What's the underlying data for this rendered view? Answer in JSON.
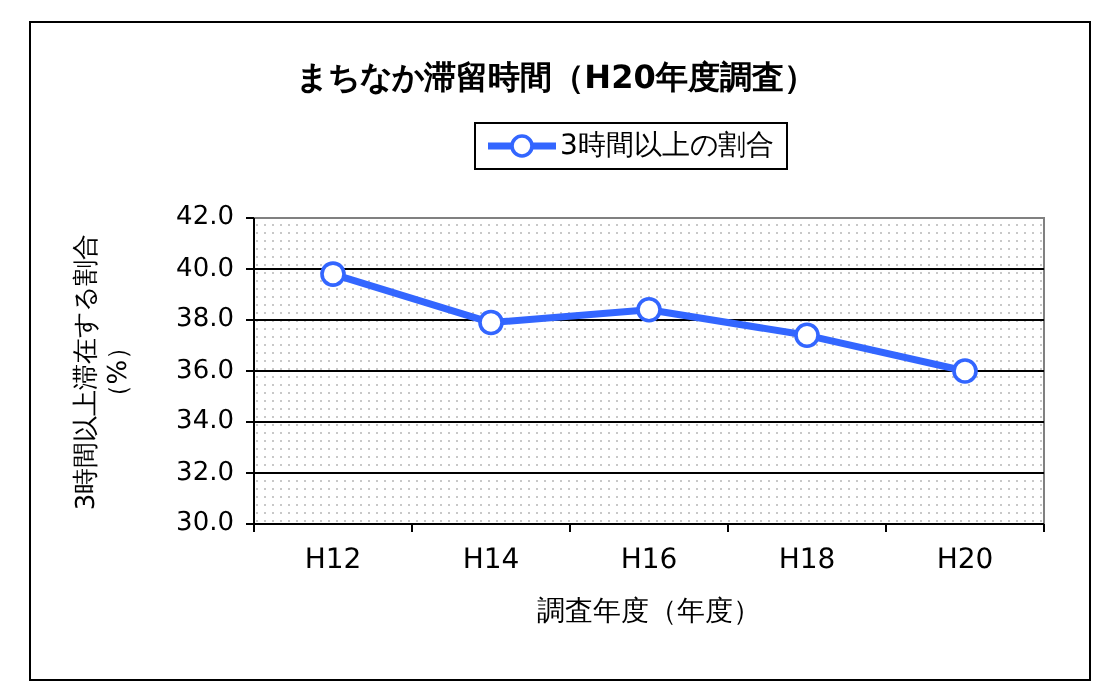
{
  "chart_data": {
    "type": "line",
    "title": "まちなか滞留時間（H20年度調査）",
    "xlabel": "調査年度（年度）",
    "ylabel": "3時間以上滞在する割合（%）",
    "categories": [
      "H12",
      "H14",
      "H16",
      "H18",
      "H20"
    ],
    "series": [
      {
        "name": "3時間以上の割合",
        "color": "#3366ff",
        "values": [
          39.8,
          37.9,
          38.4,
          37.4,
          36.0
        ]
      }
    ],
    "ylim": [
      30,
      42
    ],
    "yticks": [
      {
        "value": 30,
        "label": "30.0"
      },
      {
        "value": 32,
        "label": "32.0"
      },
      {
        "value": 34,
        "label": "34.0"
      },
      {
        "value": 36,
        "label": "36.0"
      },
      {
        "value": 38,
        "label": "38.0"
      },
      {
        "value": 40,
        "label": "40.0"
      },
      {
        "value": 42,
        "label": "42.0"
      }
    ],
    "grid": "y",
    "legend": "top",
    "marker": "circle",
    "line_style": "solid"
  }
}
